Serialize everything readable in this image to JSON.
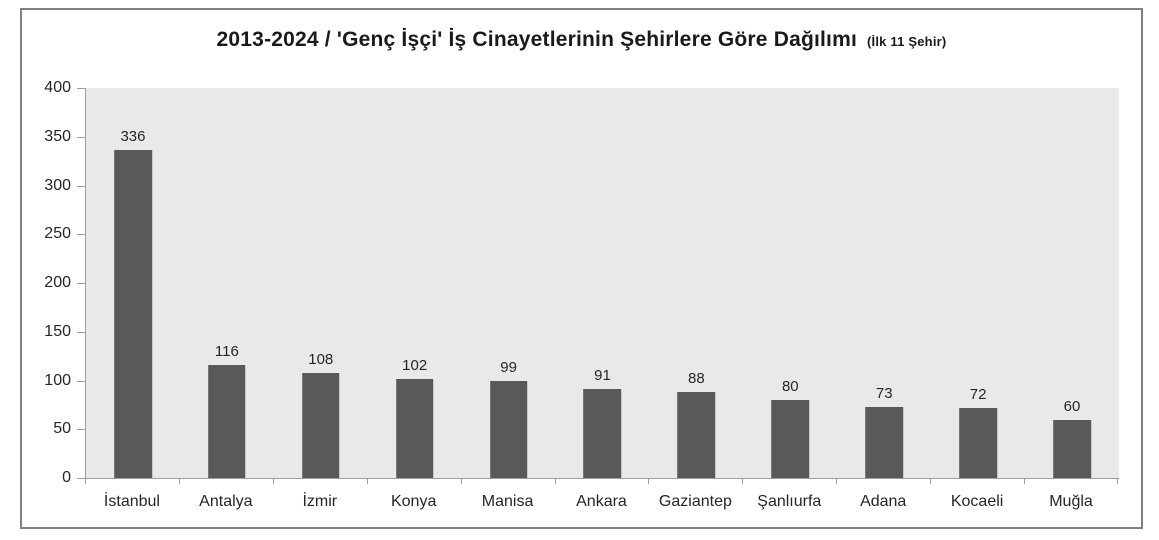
{
  "title": {
    "main": "2013-2024 / 'Genç İşçi' İş Cinayetlerinin Şehirlere Göre Dağılımı",
    "suffix": "(İlk 11 Şehir)"
  },
  "chart_data": {
    "type": "bar",
    "title": "2013-2024 / 'Genç İşçi' İş Cinayetlerinin Şehirlere Göre Dağılımı (İlk 11 Şehir)",
    "categories": [
      "İstanbul",
      "Antalya",
      "İzmir",
      "Konya",
      "Manisa",
      "Ankara",
      "Gaziantep",
      "Şanlıurfa",
      "Adana",
      "Kocaeli",
      "Muğla"
    ],
    "values": [
      336,
      116,
      108,
      102,
      99,
      91,
      88,
      80,
      73,
      72,
      60
    ],
    "xlabel": "",
    "ylabel": "",
    "ylim": [
      0,
      400
    ],
    "yticks": [
      0,
      50,
      100,
      150,
      200,
      250,
      300,
      350,
      400
    ],
    "grid": false,
    "legend": false,
    "data_labels": true,
    "colors": {
      "bar": "#595959",
      "plot_background": "#e9e9e9",
      "frame_border": "#808080",
      "axis_line": "#9e9e9e",
      "text": "#262626"
    }
  }
}
